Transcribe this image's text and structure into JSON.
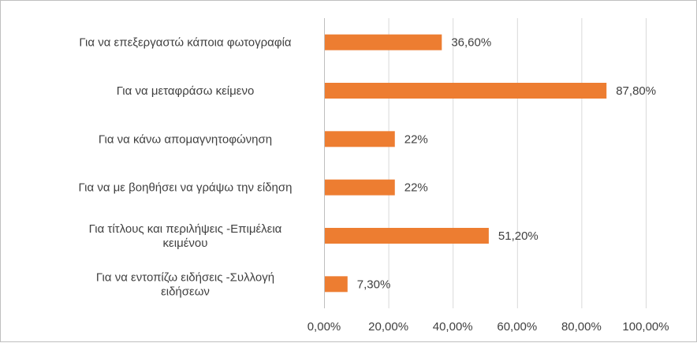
{
  "chart_data": {
    "type": "bar",
    "orientation": "horizontal",
    "categories": [
      [
        "Για να επεξεργαστώ κάποια φωτογραφία"
      ],
      [
        "Για να μεταφράσω κείμενο"
      ],
      [
        "Για να κάνω απομαγνητοφώνηση"
      ],
      [
        "Για να με βοηθήσει να γράψω την είδηση"
      ],
      [
        "Για τίτλους και περιλήψεις -Επιμέλεια",
        "κειμένου"
      ],
      [
        "Για να εντοπίζω ειδήσεις -Συλλογή",
        "ειδήσεων"
      ]
    ],
    "values": [
      36.6,
      87.8,
      22,
      22,
      51.2,
      7.3
    ],
    "data_labels": [
      "36,60%",
      "87,80%",
      "22%",
      "22%",
      "51,20%",
      "7,30%"
    ],
    "xlim": [
      0,
      100
    ],
    "xticks": [
      0,
      20,
      40,
      60,
      80,
      100
    ],
    "xtick_labels": [
      "0,00%",
      "20,00%",
      "40,00%",
      "60,00%",
      "80,00%",
      "100,00%"
    ],
    "grid": true,
    "legend": "none",
    "colors": {
      "bar": "#ED7D31",
      "grid": "#D9D9D9",
      "text": "#404040"
    }
  }
}
